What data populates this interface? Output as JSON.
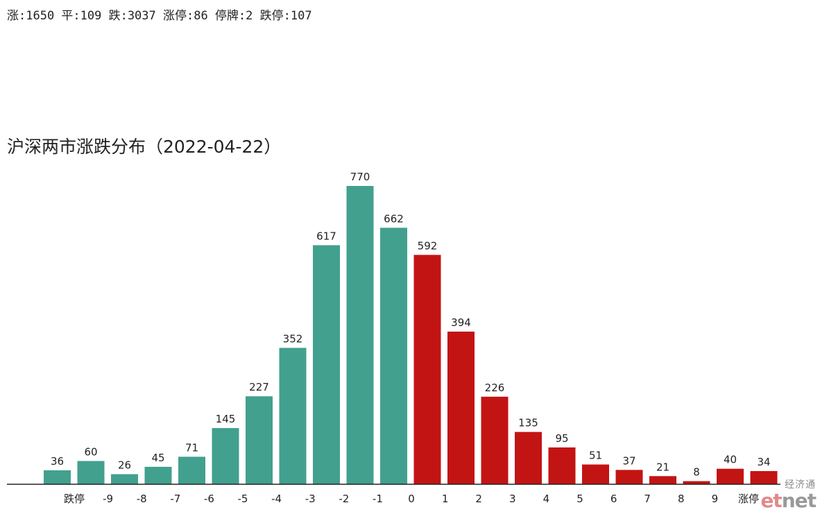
{
  "header": {
    "stats_text": "涨:1650 平:109 跌:3037 涨停:86 停牌:2 跌停:107"
  },
  "watermark": {
    "cn": "经济通",
    "logo_et": "et",
    "logo_net": "net"
  },
  "colors": {
    "down": "#42a08e",
    "up": "#c31414",
    "axis": "#222222"
  },
  "chart_data": {
    "type": "bar",
    "title": "沪深两市涨跌分布（2022-04-22）",
    "categories": [
      "跌停",
      "-9",
      "-8",
      "-7",
      "-6",
      "-5",
      "-4",
      "-3",
      "-2",
      "-1",
      "0",
      "1",
      "2",
      "3",
      "4",
      "5",
      "6",
      "7",
      "8",
      "9",
      "涨停"
    ],
    "bars": [
      {
        "label": "跌停-",
        "value": 36,
        "group": "down"
      },
      {
        "label": "跌停+",
        "value": 60,
        "group": "down"
      },
      {
        "label": "-9",
        "value": 26,
        "group": "down"
      },
      {
        "label": "-8",
        "value": 45,
        "group": "down"
      },
      {
        "label": "-7",
        "value": 71,
        "group": "down"
      },
      {
        "label": "-6",
        "value": 145,
        "group": "down"
      },
      {
        "label": "-5",
        "value": 227,
        "group": "down"
      },
      {
        "label": "-4",
        "value": 352,
        "group": "down"
      },
      {
        "label": "-3",
        "value": 617,
        "group": "down"
      },
      {
        "label": "-2",
        "value": 770,
        "group": "down"
      },
      {
        "label": "-1",
        "value": 662,
        "group": "down"
      },
      {
        "label": "0",
        "value": 592,
        "group": "up"
      },
      {
        "label": "1",
        "value": 394,
        "group": "up"
      },
      {
        "label": "2",
        "value": 226,
        "group": "up"
      },
      {
        "label": "3",
        "value": 135,
        "group": "up"
      },
      {
        "label": "4",
        "value": 95,
        "group": "up"
      },
      {
        "label": "5",
        "value": 51,
        "group": "up"
      },
      {
        "label": "6",
        "value": 37,
        "group": "up"
      },
      {
        "label": "7",
        "value": 21,
        "group": "up"
      },
      {
        "label": "8",
        "value": 8,
        "group": "up"
      },
      {
        "label": "9",
        "value": 40,
        "group": "up"
      },
      {
        "label": "涨停",
        "value": 34,
        "group": "up"
      }
    ],
    "ylim": [
      0,
      770
    ],
    "grid": false,
    "legend": "none"
  }
}
